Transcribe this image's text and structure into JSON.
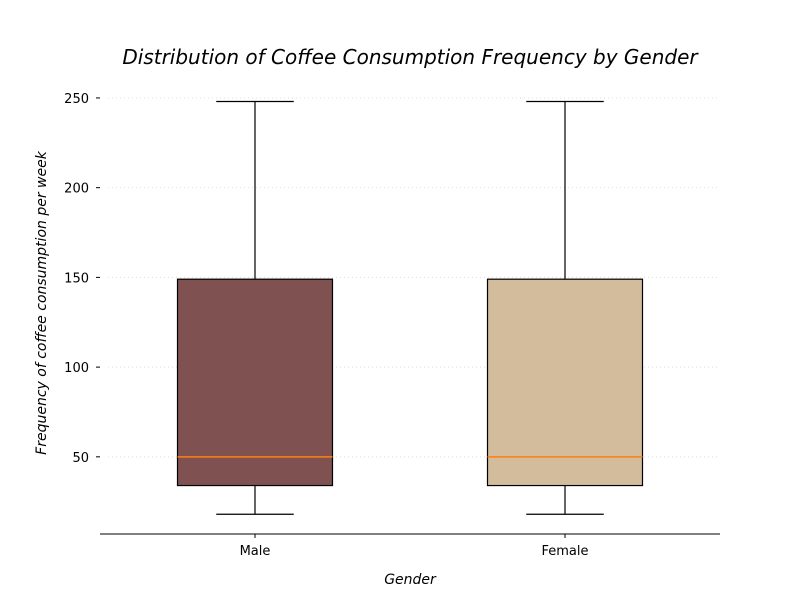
{
  "chart_data": {
    "type": "box",
    "title": "Distribution of Coffee Consumption Frequency by Gender",
    "xlabel": "Gender",
    "ylabel": "Frequency of coffee consumption per week",
    "categories": [
      "Male",
      "Female"
    ],
    "ylim": [
      7,
      260
    ],
    "yticks": [
      50,
      100,
      150,
      200,
      250
    ],
    "grid": {
      "y": true,
      "style": "dotted",
      "color": "#dddddd"
    },
    "median_color": "#ff7f0e",
    "series": [
      {
        "category": "Male",
        "whisker_low": 18,
        "q1": 34,
        "median": 50,
        "q3": 149,
        "whisker_high": 248,
        "color": "#7f5150"
      },
      {
        "category": "Female",
        "whisker_low": 18,
        "q1": 34,
        "median": 50,
        "q3": 149,
        "whisker_high": 248,
        "color": "#d2bc9b"
      }
    ]
  }
}
